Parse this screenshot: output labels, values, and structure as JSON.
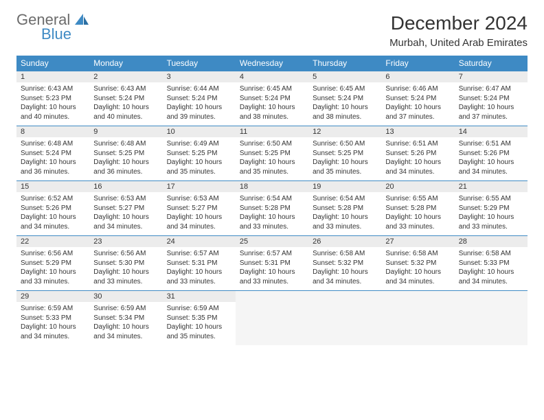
{
  "logo": {
    "line1": "General",
    "line2": "Blue",
    "color1": "#6b6b6b",
    "color2": "#3e8ac4"
  },
  "title": "December 2024",
  "subtitle": "Murbah, United Arab Emirates",
  "header_bg": "#3e8ac4",
  "header_fg": "#ffffff",
  "daynum_bg": "#ececec",
  "rule_color": "#3e8ac4",
  "text_color": "#333333",
  "font_family": "Arial",
  "day_headers": [
    "Sunday",
    "Monday",
    "Tuesday",
    "Wednesday",
    "Thursday",
    "Friday",
    "Saturday"
  ],
  "weeks": [
    [
      {
        "n": "1",
        "sr": "6:43 AM",
        "ss": "5:23 PM",
        "dl": "10 hours and 40 minutes."
      },
      {
        "n": "2",
        "sr": "6:43 AM",
        "ss": "5:24 PM",
        "dl": "10 hours and 40 minutes."
      },
      {
        "n": "3",
        "sr": "6:44 AM",
        "ss": "5:24 PM",
        "dl": "10 hours and 39 minutes."
      },
      {
        "n": "4",
        "sr": "6:45 AM",
        "ss": "5:24 PM",
        "dl": "10 hours and 38 minutes."
      },
      {
        "n": "5",
        "sr": "6:45 AM",
        "ss": "5:24 PM",
        "dl": "10 hours and 38 minutes."
      },
      {
        "n": "6",
        "sr": "6:46 AM",
        "ss": "5:24 PM",
        "dl": "10 hours and 37 minutes."
      },
      {
        "n": "7",
        "sr": "6:47 AM",
        "ss": "5:24 PM",
        "dl": "10 hours and 37 minutes."
      }
    ],
    [
      {
        "n": "8",
        "sr": "6:48 AM",
        "ss": "5:24 PM",
        "dl": "10 hours and 36 minutes."
      },
      {
        "n": "9",
        "sr": "6:48 AM",
        "ss": "5:25 PM",
        "dl": "10 hours and 36 minutes."
      },
      {
        "n": "10",
        "sr": "6:49 AM",
        "ss": "5:25 PM",
        "dl": "10 hours and 35 minutes."
      },
      {
        "n": "11",
        "sr": "6:50 AM",
        "ss": "5:25 PM",
        "dl": "10 hours and 35 minutes."
      },
      {
        "n": "12",
        "sr": "6:50 AM",
        "ss": "5:25 PM",
        "dl": "10 hours and 35 minutes."
      },
      {
        "n": "13",
        "sr": "6:51 AM",
        "ss": "5:26 PM",
        "dl": "10 hours and 34 minutes."
      },
      {
        "n": "14",
        "sr": "6:51 AM",
        "ss": "5:26 PM",
        "dl": "10 hours and 34 minutes."
      }
    ],
    [
      {
        "n": "15",
        "sr": "6:52 AM",
        "ss": "5:26 PM",
        "dl": "10 hours and 34 minutes."
      },
      {
        "n": "16",
        "sr": "6:53 AM",
        "ss": "5:27 PM",
        "dl": "10 hours and 34 minutes."
      },
      {
        "n": "17",
        "sr": "6:53 AM",
        "ss": "5:27 PM",
        "dl": "10 hours and 34 minutes."
      },
      {
        "n": "18",
        "sr": "6:54 AM",
        "ss": "5:28 PM",
        "dl": "10 hours and 33 minutes."
      },
      {
        "n": "19",
        "sr": "6:54 AM",
        "ss": "5:28 PM",
        "dl": "10 hours and 33 minutes."
      },
      {
        "n": "20",
        "sr": "6:55 AM",
        "ss": "5:28 PM",
        "dl": "10 hours and 33 minutes."
      },
      {
        "n": "21",
        "sr": "6:55 AM",
        "ss": "5:29 PM",
        "dl": "10 hours and 33 minutes."
      }
    ],
    [
      {
        "n": "22",
        "sr": "6:56 AM",
        "ss": "5:29 PM",
        "dl": "10 hours and 33 minutes."
      },
      {
        "n": "23",
        "sr": "6:56 AM",
        "ss": "5:30 PM",
        "dl": "10 hours and 33 minutes."
      },
      {
        "n": "24",
        "sr": "6:57 AM",
        "ss": "5:31 PM",
        "dl": "10 hours and 33 minutes."
      },
      {
        "n": "25",
        "sr": "6:57 AM",
        "ss": "5:31 PM",
        "dl": "10 hours and 33 minutes."
      },
      {
        "n": "26",
        "sr": "6:58 AM",
        "ss": "5:32 PM",
        "dl": "10 hours and 34 minutes."
      },
      {
        "n": "27",
        "sr": "6:58 AM",
        "ss": "5:32 PM",
        "dl": "10 hours and 34 minutes."
      },
      {
        "n": "28",
        "sr": "6:58 AM",
        "ss": "5:33 PM",
        "dl": "10 hours and 34 minutes."
      }
    ],
    [
      {
        "n": "29",
        "sr": "6:59 AM",
        "ss": "5:33 PM",
        "dl": "10 hours and 34 minutes."
      },
      {
        "n": "30",
        "sr": "6:59 AM",
        "ss": "5:34 PM",
        "dl": "10 hours and 34 minutes."
      },
      {
        "n": "31",
        "sr": "6:59 AM",
        "ss": "5:35 PM",
        "dl": "10 hours and 35 minutes."
      },
      null,
      null,
      null,
      null
    ]
  ],
  "labels": {
    "sunrise": "Sunrise:",
    "sunset": "Sunset:",
    "daylight": "Daylight:"
  }
}
